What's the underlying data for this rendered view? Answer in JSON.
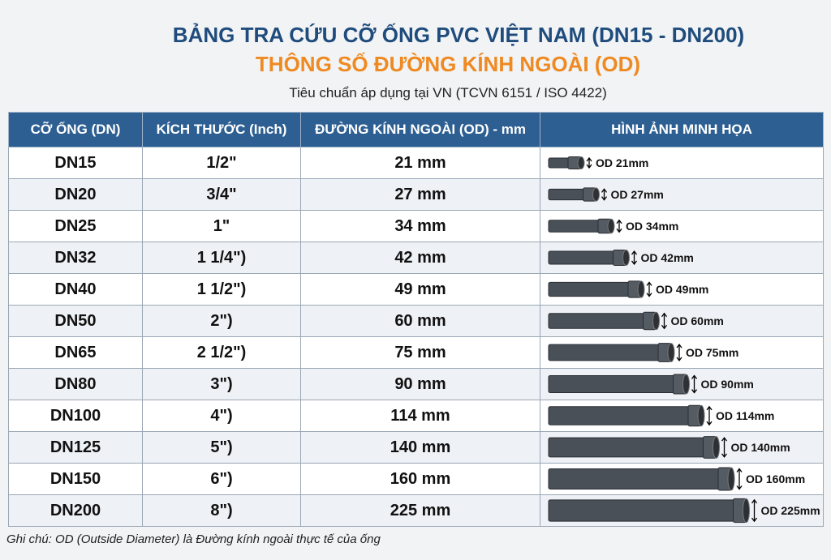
{
  "header": {
    "title": "BẢNG TRA CỨU CỠ ỐNG PVC VIỆT NAM (DN15 - DN200)",
    "subtitle": "THÔNG SỐ ĐƯỜNG KÍNH NGOÀI (OD)",
    "standard": "Tiêu chuẩn áp dụng tại VN (TCVN 6151 / ISO 4422)"
  },
  "table": {
    "headers": [
      "CỠ ỐNG (DN)",
      "KÍCH THƯỚC (Inch)",
      "ĐƯỜNG KÍNH NGOÀI (OD) - mm",
      "HÌNH ẢNH MINH HỌA"
    ],
    "rows": [
      [
        "DN15",
        "1/2\"",
        "21 mm",
        "OD 21mm"
      ],
      [
        "DN20",
        "3/4\"",
        "27 mm",
        "OD 27mm"
      ],
      [
        "DN25",
        "1\"",
        "34 mm",
        "OD 34mm"
      ],
      [
        "DN32",
        "1 1/4\")",
        "42 mm",
        "OD 42mm"
      ],
      [
        "DN40",
        "1 1/2\")",
        "49 mm",
        "OD 49mm"
      ],
      [
        "DN50",
        "2\")",
        "60 mm",
        "OD 60mm"
      ],
      [
        "DN65",
        "2 1/2\")",
        "75 mm",
        "OD 75mm"
      ],
      [
        "DN80",
        "3\")",
        "90 mm",
        "OD 90mm"
      ],
      [
        "DN100",
        "4\")",
        "114 mm",
        "OD 114mm"
      ],
      [
        "DN125",
        "5\")",
        "140 mm",
        "OD 140mm"
      ],
      [
        "DN150",
        "6\")",
        "160 mm",
        "OD 160mm"
      ],
      [
        "DN200",
        "8\")",
        "225 mm",
        "OD 225mm"
      ]
    ]
  },
  "footer": {
    "note": "Ghi chú: OD (Outside Diameter) là Đường kính ngoài thực tế của ống"
  }
}
